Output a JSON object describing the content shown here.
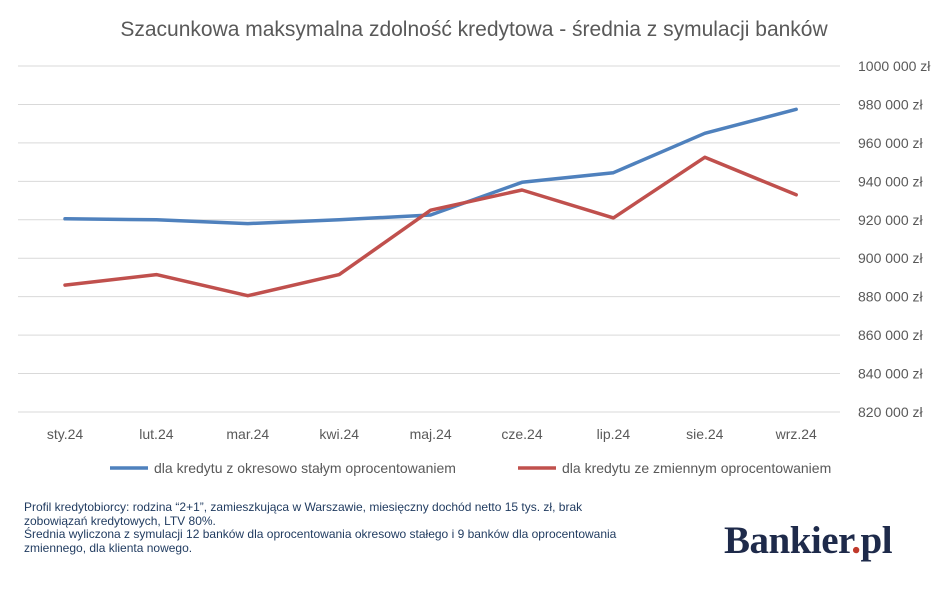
{
  "chart_data": {
    "type": "line",
    "title": "Szacunkowa maksymalna zdolność kredytowa - średnia z symulacji banków",
    "categories": [
      "sty.24",
      "lut.24",
      "mar.24",
      "kwi.24",
      "maj.24",
      "cze.24",
      "lip.24",
      "sie.24",
      "wrz.24"
    ],
    "series": [
      {
        "name": "dla kredytu z okresowo stałym oprocentowaniem",
        "color": "#4f81bd",
        "values": [
          920500,
          920000,
          918000,
          920000,
          922500,
          939500,
          944500,
          965000,
          977500
        ]
      },
      {
        "name": "dla kredytu ze zmiennym oprocentowaniem",
        "color": "#c0504d",
        "values": [
          886000,
          891500,
          880500,
          891500,
          925000,
          935500,
          921000,
          952500,
          933000
        ]
      }
    ],
    "ylim": [
      820000,
      1000000
    ],
    "yticks": [
      820000,
      840000,
      860000,
      880000,
      900000,
      920000,
      940000,
      960000,
      980000,
      1000000
    ],
    "ytick_labels": [
      "820 000 zł",
      "840 000 zł",
      "860 000 zł",
      "880 000 zł",
      "900 000 zł",
      "920 000 zł",
      "940 000 zł",
      "960 000 zł",
      "980 000 zł",
      "1000 000 zł"
    ],
    "grid": true,
    "legend_position": "bottom"
  },
  "notes": [
    "Profil kredytobiorcy: rodzina “2+1”, zamieszkująca w Warszawie, miesięczny dochód netto 15 tys. zł, brak zobowiązań kredytowych, LTV 80%.",
    "Średnia wyliczona z symulacji 12 banków dla oprocentowania okresowo stałego i 9 banków dla oprocentowania zmiennego, dla klienta nowego."
  ],
  "logo": {
    "main": "Bankier",
    "dot": ".",
    "tail": "pl"
  }
}
